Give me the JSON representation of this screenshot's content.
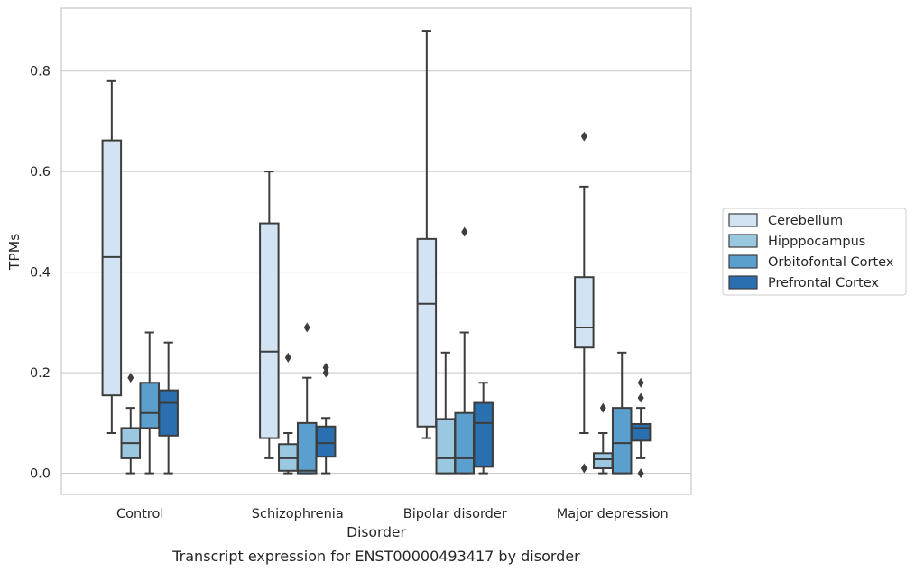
{
  "chart_data": {
    "type": "box",
    "xlabel": "Disorder",
    "ylabel": "TPMs",
    "caption": "Transcript expression for ENST00000493417 by disorder",
    "ylim": [
      -0.042,
      0.925
    ],
    "yticks": [
      "0.0",
      "0.2",
      "0.4",
      "0.6",
      "0.8"
    ],
    "grid": "horizontal",
    "legend_position": "right",
    "categories": [
      "Control",
      "Schizophrenia",
      "Bipolar disorder",
      "Major depression"
    ],
    "series": [
      {
        "name": "Cerebellum",
        "color": "#d2e3f3",
        "boxes": [
          {
            "whisker_low": 0.08,
            "q1": 0.155,
            "median": 0.43,
            "q3": 0.662,
            "whisker_high": 0.78,
            "outliers": []
          },
          {
            "whisker_low": 0.03,
            "q1": 0.07,
            "median": 0.242,
            "q3": 0.497,
            "whisker_high": 0.6,
            "outliers": []
          },
          {
            "whisker_low": 0.07,
            "q1": 0.093,
            "median": 0.337,
            "q3": 0.466,
            "whisker_high": 0.88,
            "outliers": []
          },
          {
            "whisker_low": 0.08,
            "q1": 0.25,
            "median": 0.29,
            "q3": 0.39,
            "whisker_high": 0.57,
            "outliers": [
              0.67,
              0.01
            ]
          }
        ]
      },
      {
        "name": "Hipppocampus",
        "color": "#9ac8e0",
        "boxes": [
          {
            "whisker_low": 0.0,
            "q1": 0.03,
            "median": 0.06,
            "q3": 0.09,
            "whisker_high": 0.13,
            "outliers": [
              0.19
            ]
          },
          {
            "whisker_low": 0.0,
            "q1": 0.005,
            "median": 0.03,
            "q3": 0.058,
            "whisker_high": 0.08,
            "outliers": [
              0.23
            ]
          },
          {
            "whisker_low": 0.0,
            "q1": 0.0,
            "median": 0.03,
            "q3": 0.108,
            "whisker_high": 0.24,
            "outliers": []
          },
          {
            "whisker_low": 0.0,
            "q1": 0.01,
            "median": 0.028,
            "q3": 0.04,
            "whisker_high": 0.08,
            "outliers": [
              0.13
            ]
          }
        ]
      },
      {
        "name": "Orbitofontal Cortex",
        "color": "#5a9fcd",
        "boxes": [
          {
            "whisker_low": 0.0,
            "q1": 0.09,
            "median": 0.12,
            "q3": 0.18,
            "whisker_high": 0.28,
            "outliers": []
          },
          {
            "whisker_low": 0.0,
            "q1": 0.0,
            "median": 0.005,
            "q3": 0.1,
            "whisker_high": 0.19,
            "outliers": [
              0.29
            ]
          },
          {
            "whisker_low": 0.0,
            "q1": 0.0,
            "median": 0.03,
            "q3": 0.12,
            "whisker_high": 0.28,
            "outliers": [
              0.48
            ]
          },
          {
            "whisker_low": 0.0,
            "q1": 0.0,
            "median": 0.06,
            "q3": 0.13,
            "whisker_high": 0.24,
            "outliers": []
          }
        ]
      },
      {
        "name": "Prefrontal Cortex",
        "color": "#2a6fb0",
        "boxes": [
          {
            "whisker_low": 0.0,
            "q1": 0.075,
            "median": 0.14,
            "q3": 0.165,
            "whisker_high": 0.26,
            "outliers": []
          },
          {
            "whisker_low": 0.0,
            "q1": 0.033,
            "median": 0.06,
            "q3": 0.093,
            "whisker_high": 0.11,
            "outliers": [
              0.2,
              0.21
            ]
          },
          {
            "whisker_low": 0.0,
            "q1": 0.013,
            "median": 0.1,
            "q3": 0.14,
            "whisker_high": 0.18,
            "outliers": []
          },
          {
            "whisker_low": 0.03,
            "q1": 0.065,
            "median": 0.09,
            "q3": 0.098,
            "whisker_high": 0.13,
            "outliers": [
              0.15,
              0.18,
              0.0
            ]
          }
        ]
      }
    ]
  }
}
